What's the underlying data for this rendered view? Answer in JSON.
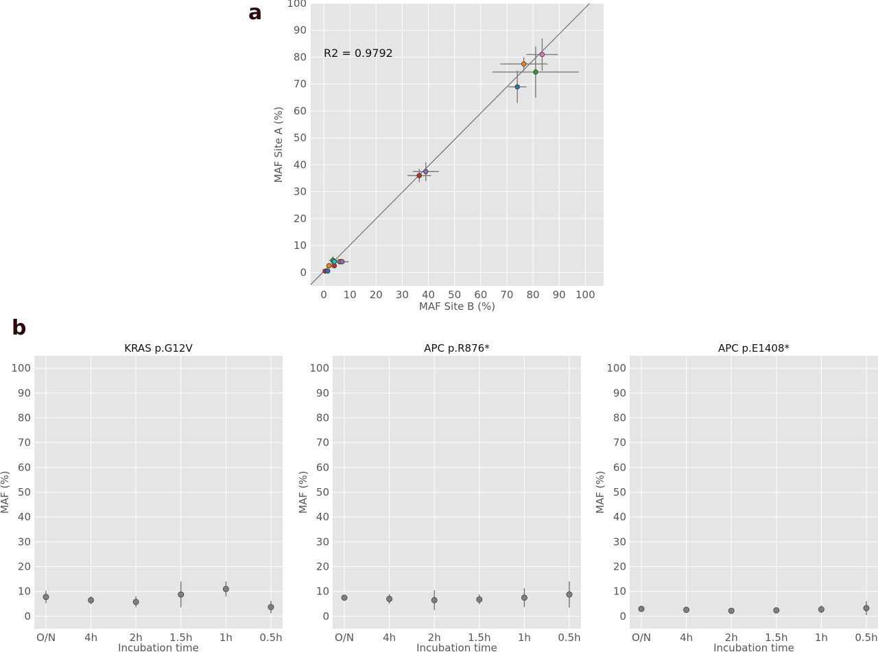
{
  "panels": {
    "a": "a",
    "b": "b"
  },
  "chart_data": [
    {
      "id": "a",
      "type": "scatter",
      "title": "",
      "xlabel": "MAF Site B (%)",
      "ylabel": "MAF Site A (%)",
      "xlim": [
        -5,
        107
      ],
      "ylim": [
        -5,
        100
      ],
      "xticks": [
        0,
        10,
        20,
        30,
        40,
        50,
        60,
        70,
        80,
        90,
        100
      ],
      "yticks": [
        0,
        10,
        20,
        30,
        40,
        50,
        60,
        70,
        80,
        90,
        100
      ],
      "grid": true,
      "annotation": "R2 = 0.9792",
      "fit_line": {
        "slope": 0.98,
        "intercept": 0.4
      },
      "points": [
        {
          "x": 74,
          "y": 69,
          "xerr": 3.5,
          "yerr": 6,
          "color": "#1f77b4"
        },
        {
          "x": 76.5,
          "y": 77.5,
          "xerr": 9,
          "yerr": 2.5,
          "color": "#ff7f0e"
        },
        {
          "x": 81,
          "y": 74.5,
          "xerr": 16.5,
          "yerr": 9.5,
          "color": "#2ca02c"
        },
        {
          "x": 83.5,
          "y": 81,
          "xerr": 6,
          "yerr": 6,
          "color": "#e377c2"
        },
        {
          "x": 36.5,
          "y": 36,
          "xerr": 4.5,
          "yerr": 2.5,
          "color": "#d62728"
        },
        {
          "x": 39,
          "y": 37.5,
          "xerr": 5,
          "yerr": 3.5,
          "color": "#9467bd"
        },
        {
          "x": 0.5,
          "y": 0.5,
          "xerr": 0.5,
          "yerr": 0.5,
          "color": "#d62728"
        },
        {
          "x": 1.5,
          "y": 0.5,
          "xerr": 0.5,
          "yerr": 0.5,
          "color": "#1f77b4"
        },
        {
          "x": 2,
          "y": 2.5,
          "xerr": 1,
          "yerr": 1,
          "color": "#ff7f0e"
        },
        {
          "x": 4,
          "y": 2.5,
          "xerr": 1,
          "yerr": 1,
          "color": "#d62728"
        },
        {
          "x": 3.5,
          "y": 4.5,
          "xerr": 1.5,
          "yerr": 1.5,
          "color": "#2ca02c"
        },
        {
          "x": 4,
          "y": 4,
          "xerr": 1.5,
          "yerr": 1,
          "color": "#17becf"
        },
        {
          "x": 6,
          "y": 4,
          "xerr": 3.5,
          "yerr": 1,
          "color": "#bcbd22"
        },
        {
          "x": 6.5,
          "y": 4,
          "xerr": 3,
          "yerr": 1,
          "color": "#e377c2"
        },
        {
          "x": 7,
          "y": 4,
          "xerr": 2,
          "yerr": 1,
          "color": "#9467bd"
        }
      ]
    },
    {
      "id": "b1",
      "type": "scatter",
      "title": "KRAS   p.G12V",
      "xlabel": "Incubation time",
      "ylabel": "MAF (%)",
      "ylim": [
        -5,
        105
      ],
      "yticks": [
        0,
        10,
        20,
        30,
        40,
        50,
        60,
        70,
        80,
        90,
        100
      ],
      "grid": true,
      "categories": [
        "O/N",
        "4h",
        "2h",
        "1.5h",
        "1h",
        "0.5h"
      ],
      "values": [
        7.8,
        6.5,
        5.8,
        8.8,
        11,
        3.7
      ],
      "errors": [
        2.5,
        1.5,
        2.2,
        5.2,
        3,
        2.5
      ],
      "color": "#808080"
    },
    {
      "id": "b2",
      "type": "scatter",
      "title": "APC   p.R876*",
      "xlabel": "Incubation time",
      "ylabel": "MAF (%)",
      "ylim": [
        -5,
        105
      ],
      "yticks": [
        0,
        10,
        20,
        30,
        40,
        50,
        60,
        70,
        80,
        90,
        100
      ],
      "grid": true,
      "categories": [
        "O/N",
        "4h",
        "2h",
        "1.5h",
        "1h",
        "0.5h"
      ],
      "values": [
        7.5,
        7,
        6.5,
        6.8,
        7.5,
        8.8
      ],
      "errors": [
        1,
        2,
        4,
        2,
        3.8,
        5.3
      ],
      "color": "#808080"
    },
    {
      "id": "b3",
      "type": "scatter",
      "title": "APC   p.E1408*",
      "xlabel": "Incubation time",
      "ylabel": "MAF (%)",
      "ylim": [
        -5,
        105
      ],
      "yticks": [
        0,
        10,
        20,
        30,
        40,
        50,
        60,
        70,
        80,
        90,
        100
      ],
      "grid": true,
      "categories": [
        "O/N",
        "4h",
        "2h",
        "1.5h",
        "1h",
        "0.5h"
      ],
      "values": [
        3,
        2.6,
        2.2,
        2.4,
        2.8,
        3.3
      ],
      "errors": [
        0.8,
        0.8,
        1.2,
        0.8,
        1.5,
        2.8
      ],
      "color": "#808080"
    }
  ]
}
